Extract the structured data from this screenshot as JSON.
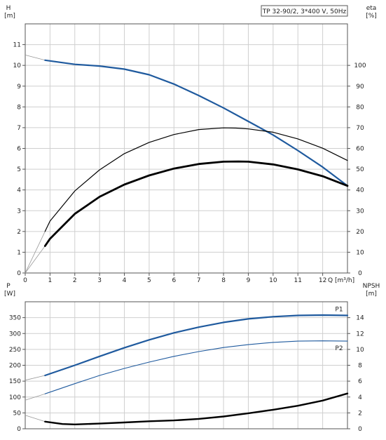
{
  "chart_data": [
    {
      "type": "line",
      "title": "TP 32-90/2, 3*400 V, 50Hz",
      "xlabel": "Q [m³/h]",
      "ylabel_left": [
        "H",
        "[m]"
      ],
      "ylabel_right": [
        "eta",
        "[%]"
      ],
      "xlim": [
        0,
        13
      ],
      "ylim_left": [
        0,
        12
      ],
      "ylim_right": [
        0,
        120
      ],
      "x_ticks": [
        "0",
        "1",
        "2",
        "3",
        "4",
        "5",
        "6",
        "7",
        "8",
        "9",
        "10",
        "11",
        "12"
      ],
      "y_left_ticks": [
        "0",
        "1",
        "2",
        "3",
        "4",
        "5",
        "6",
        "7",
        "8",
        "9",
        "10",
        "11"
      ],
      "y_right_ticks": [
        "0",
        "10",
        "20",
        "30",
        "40",
        "50",
        "60",
        "70",
        "80",
        "90",
        "100"
      ],
      "grid": true,
      "series": [
        {
          "axis": "left",
          "color": "#1f5a9e",
          "width": 2.2,
          "x": [
            0.8,
            2,
            3,
            4,
            5,
            6,
            7,
            8,
            9,
            10,
            11,
            12,
            13
          ],
          "y": [
            10.25,
            10.05,
            9.97,
            9.82,
            9.55,
            9.1,
            8.55,
            7.95,
            7.3,
            6.65,
            5.9,
            5.1,
            4.2
          ],
          "extrap_x": [
            0,
            0.8
          ],
          "extrap_y": [
            10.5,
            10.25
          ]
        },
        {
          "axis": "right",
          "color": "#000000",
          "width": 1.2,
          "x": [
            0.8,
            1,
            2,
            3,
            4,
            5,
            6,
            7,
            8,
            8.5,
            9,
            10,
            11,
            12,
            13
          ],
          "y": [
            20,
            25,
            39.5,
            49.7,
            57.5,
            62.9,
            66.7,
            69.1,
            69.9,
            69.8,
            69.4,
            67.8,
            64.6,
            60.1,
            54.2
          ],
          "extrap_x": [
            0,
            0.8
          ],
          "extrap_y": [
            0,
            20
          ]
        },
        {
          "axis": "right",
          "color": "#000000",
          "width": 2.8,
          "x": [
            0.8,
            1,
            2,
            3,
            4,
            5,
            6,
            7,
            8,
            8.6,
            9,
            10,
            11,
            12,
            13
          ],
          "y": [
            13,
            16.5,
            28.5,
            36.7,
            42.6,
            47,
            50.3,
            52.5,
            53.6,
            53.7,
            53.6,
            52.3,
            49.9,
            46.6,
            42
          ],
          "extrap_x": [
            0,
            0.8
          ],
          "extrap_y": [
            0,
            13
          ]
        }
      ]
    },
    {
      "type": "line",
      "ylabel_left": [
        "P",
        "[W]"
      ],
      "ylabel_right": [
        "NPSH",
        "[m]"
      ],
      "xlim": [
        0,
        13
      ],
      "ylim_left": [
        0,
        400
      ],
      "ylim_right": [
        0,
        16
      ],
      "y_left_ticks": [
        "0",
        "50",
        "100",
        "150",
        "200",
        "250",
        "300",
        "350"
      ],
      "y_right_ticks": [
        "0",
        "2",
        "4",
        "6",
        "8",
        "10",
        "12",
        "14"
      ],
      "grid": true,
      "series": [
        {
          "name": "P1",
          "axis": "left",
          "color": "#1f5a9e",
          "width": 2.2,
          "x": [
            0.8,
            2,
            3,
            4,
            5,
            6,
            7,
            8,
            9,
            10,
            11,
            12,
            13
          ],
          "y": [
            168,
            200,
            228,
            255,
            280,
            302,
            320,
            335,
            346,
            353,
            357,
            358,
            357
          ],
          "extrap_x": [
            0,
            0.8
          ],
          "extrap_y": [
            153,
            168
          ]
        },
        {
          "name": "P2",
          "axis": "left",
          "color": "#1f5a9e",
          "width": 1.1,
          "x": [
            0.8,
            2,
            3,
            4,
            5,
            6,
            7,
            8,
            9,
            10,
            11,
            12,
            13
          ],
          "y": [
            110,
            142,
            168,
            190,
            210,
            228,
            243,
            256,
            265,
            272,
            276,
            277,
            276
          ],
          "extrap_x": [
            0,
            0.8
          ],
          "extrap_y": [
            90,
            110
          ]
        },
        {
          "axis": "right",
          "color": "#000000",
          "width": 2.4,
          "x": [
            0.8,
            1.5,
            2,
            3,
            4,
            5,
            6,
            7,
            8,
            9,
            10,
            11,
            12,
            13
          ],
          "y": [
            0.9,
            0.6,
            0.55,
            0.65,
            0.8,
            0.95,
            1.05,
            1.25,
            1.55,
            1.95,
            2.4,
            2.9,
            3.55,
            4.45
          ],
          "extrap_x": [
            0,
            0.8
          ],
          "extrap_y": [
            1.7,
            0.9
          ]
        }
      ]
    }
  ]
}
